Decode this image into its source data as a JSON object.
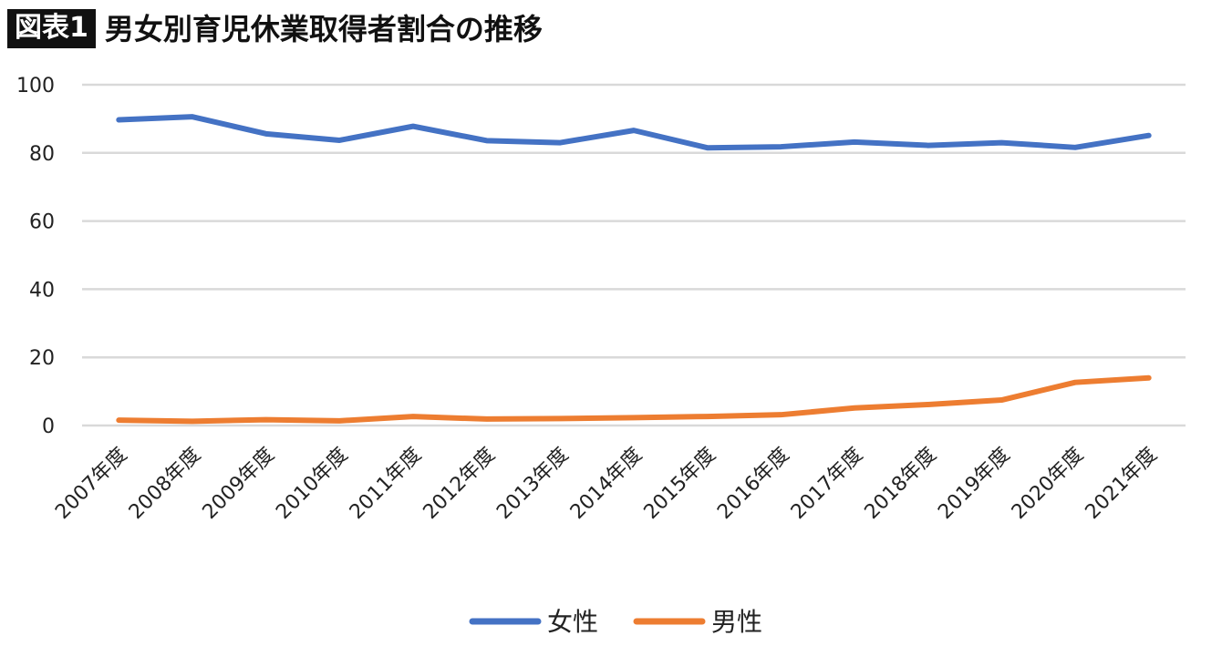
{
  "header": {
    "badge": "図表1",
    "title": "男女別育児休業取得者割合の推移"
  },
  "chart_data": {
    "type": "line",
    "categories": [
      "2007年度",
      "2008年度",
      "2009年度",
      "2010年度",
      "2011年度",
      "2012年度",
      "2013年度",
      "2014年度",
      "2015年度",
      "2016年度",
      "2017年度",
      "2018年度",
      "2019年度",
      "2020年度",
      "2021年度"
    ],
    "series": [
      {
        "name": "女性",
        "color": "#4472c4",
        "values": [
          89.7,
          90.6,
          85.6,
          83.7,
          87.8,
          83.6,
          83.0,
          86.6,
          81.5,
          81.8,
          83.2,
          82.2,
          83.0,
          81.6,
          85.1
        ]
      },
      {
        "name": "男性",
        "color": "#ed7d31",
        "values": [
          1.56,
          1.23,
          1.72,
          1.38,
          2.63,
          1.89,
          2.03,
          2.3,
          2.65,
          3.16,
          5.14,
          6.16,
          7.48,
          12.65,
          13.97
        ]
      }
    ],
    "yticks": [
      "0",
      "20",
      "40",
      "60",
      "80",
      "100"
    ],
    "ylim": [
      0,
      100
    ],
    "grid": true,
    "legend": "bottom"
  }
}
